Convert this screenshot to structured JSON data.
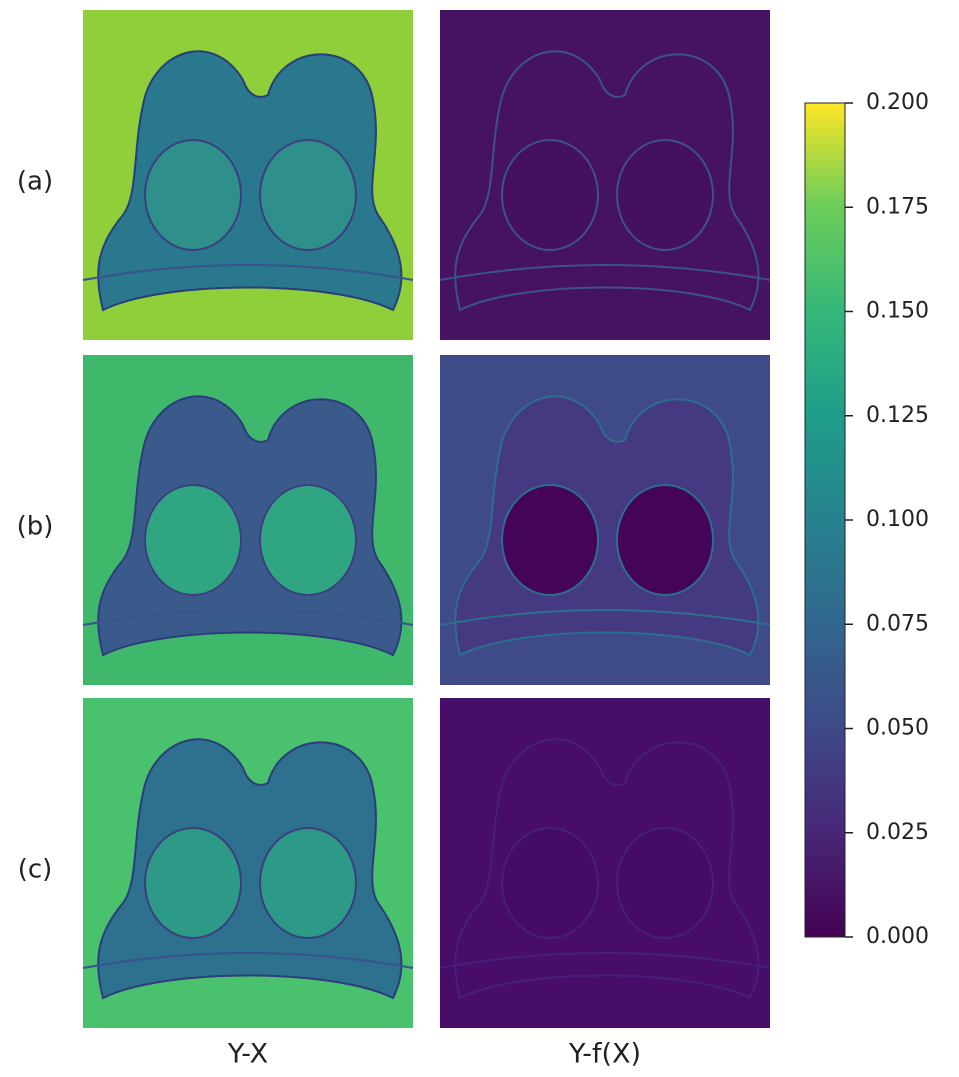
{
  "chart_data": {
    "type": "image-grid",
    "row_labels": [
      "(a)",
      "(b)",
      "(c)"
    ],
    "column_labels": [
      "Y-X",
      "Y-f(X)"
    ],
    "colormap": "viridis",
    "colorbar_lim": [
      0,
      0.2
    ],
    "colorbar_ticks": [
      {
        "value": 0,
        "label": "0.000"
      },
      0.025,
      {
        "value": 0.05,
        "label": "0.050"
      },
      0.075,
      {
        "value": 0.1,
        "label": "0.100"
      },
      0.125,
      {
        "value": 0.15,
        "label": "0.150"
      },
      0.175,
      {
        "value": 0.2,
        "label": "0.200"
      }
    ]
  }
}
